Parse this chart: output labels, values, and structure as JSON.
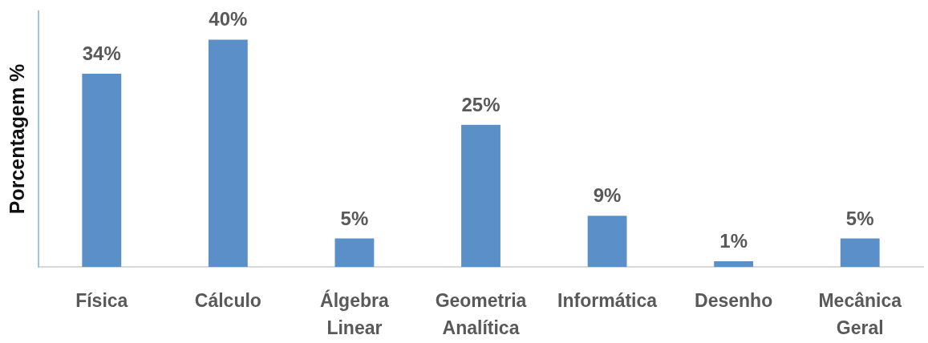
{
  "chart_data": {
    "type": "bar",
    "ylabel": "Porcentagem %",
    "categories": [
      "Física",
      "Cálculo",
      "Álgebra Linear",
      "Geometria Analítica",
      "Informática",
      "Desenho",
      "Mecânica Geral"
    ],
    "values": [
      34,
      40,
      5,
      25,
      9,
      1,
      5
    ],
    "color": "#5b8fc7",
    "value_labels": [
      "34%",
      "40%",
      "5%",
      "25%",
      "9%",
      "1%",
      "5%"
    ],
    "tick_labels": "x"
  }
}
